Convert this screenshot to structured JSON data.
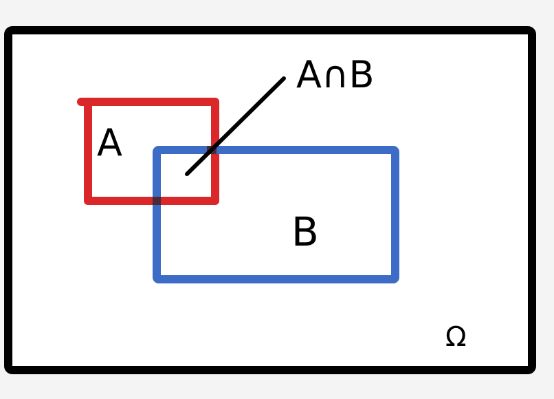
{
  "labels": {
    "set_a": "A",
    "set_b": "B",
    "intersection": "A∩B",
    "universe": "Ω"
  },
  "colors": {
    "background": "#f4f4f4",
    "canvas": "#ffffff",
    "universe_border": "#000000",
    "set_a": "#d9272a",
    "set_b": "#3d6cc6",
    "overlap": "#4a2a3a",
    "pointer_line": "#000000"
  }
}
